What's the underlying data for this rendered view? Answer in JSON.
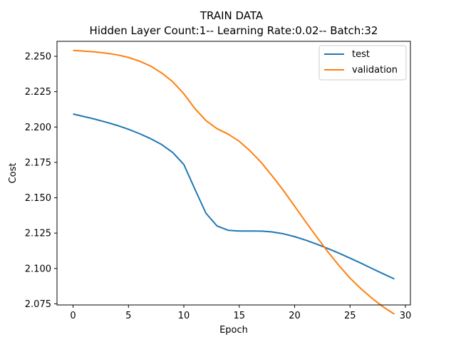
{
  "chart_data": {
    "type": "line",
    "title": "TRAIN DATA",
    "subtitle": "Hidden Layer Count:1-- Learning Rate:0.02-- Batch:32",
    "xlabel": "Epoch",
    "ylabel": "Cost",
    "xlim": [
      -1.45,
      30.45
    ],
    "ylim": [
      2.0742,
      2.2606
    ],
    "xticks": [
      0,
      5,
      10,
      15,
      20,
      25,
      30
    ],
    "yticks": [
      2.075,
      2.1,
      2.125,
      2.15,
      2.175,
      2.2,
      2.225,
      2.25
    ],
    "xtick_labels": [
      "0",
      "5",
      "10",
      "15",
      "20",
      "25",
      "30"
    ],
    "ytick_labels": [
      "2.075",
      "2.100",
      "2.125",
      "2.150",
      "2.175",
      "2.200",
      "2.225",
      "2.250"
    ],
    "grid": false,
    "legend_position": "top-right",
    "x": [
      0,
      1,
      2,
      3,
      4,
      5,
      6,
      7,
      8,
      9,
      10,
      11,
      12,
      13,
      14,
      15,
      16,
      17,
      18,
      19,
      20,
      21,
      22,
      23,
      24,
      25,
      26,
      27,
      28,
      29
    ],
    "series": [
      {
        "name": "test",
        "color": "#1f77b4",
        "values": [
          2.2092,
          2.2074,
          2.2055,
          2.2034,
          2.2011,
          2.1984,
          2.1953,
          2.1918,
          2.1876,
          2.182,
          2.1735,
          2.156,
          2.139,
          2.13,
          2.127,
          2.1265,
          2.1265,
          2.1264,
          2.1258,
          2.1245,
          2.1225,
          2.12,
          2.1172,
          2.1141,
          2.1108,
          2.1073,
          2.1037,
          2.0999,
          2.0962,
          2.0926
        ]
      },
      {
        "name": "validation",
        "color": "#ff7f0e",
        "values": [
          2.2542,
          2.2537,
          2.2531,
          2.2522,
          2.251,
          2.2492,
          2.2466,
          2.2431,
          2.2382,
          2.232,
          2.2235,
          2.213,
          2.2045,
          2.1988,
          2.195,
          2.1899,
          2.183,
          2.1748,
          2.1652,
          2.155,
          2.144,
          2.133,
          2.1222,
          2.1118,
          2.1021,
          2.0932,
          2.0856,
          2.0788,
          2.0728,
          2.0677
        ]
      }
    ]
  }
}
